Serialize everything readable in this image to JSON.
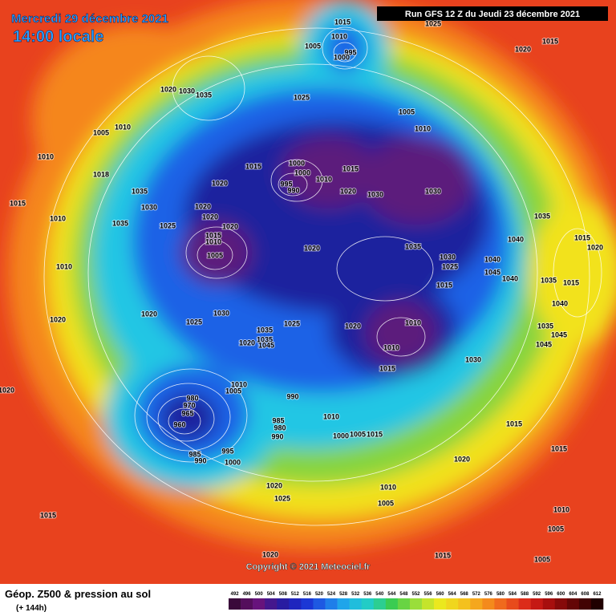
{
  "header": {
    "date": "Mercredi 29 décembre 2021",
    "time": "14:00 locale",
    "run": "Run GFS 12 Z du Jeudi 23 décembre 2021"
  },
  "footer": {
    "copyright": "Copyright © 2021 Meteociel.fr"
  },
  "legend": {
    "title": "Géop. Z500 & pression au sol",
    "lead": "(+ 144h)"
  },
  "colorbar": {
    "ticks": [
      492,
      496,
      500,
      504,
      508,
      512,
      516,
      520,
      524,
      528,
      532,
      536,
      540,
      544,
      548,
      552,
      556,
      560,
      564,
      568,
      572,
      576,
      580,
      584,
      588,
      592,
      596,
      600,
      604,
      608,
      612
    ]
  },
  "isobar_labels": [
    "1015",
    "1010",
    "1005",
    "995",
    "1000",
    "1025",
    "1015",
    "1020",
    "1020",
    "1030",
    "1035",
    "1025",
    "1005",
    "1010",
    "1005",
    "1010",
    "1010",
    "1015",
    "1000",
    "1000",
    "1015",
    "1010",
    "995",
    "990",
    "1020",
    "1030",
    "1030",
    "1018",
    "1020",
    "1035",
    "1030",
    "1020",
    "1020",
    "1025",
    "1020",
    "1035",
    "1015",
    "1010",
    "1015",
    "1010",
    "1020",
    "1035",
    "1035",
    "1040",
    "1015",
    "1020",
    "1005",
    "1030",
    "1025",
    "1040",
    "1045",
    "1040",
    "1015",
    "1035",
    "1015",
    "1010",
    "1020",
    "1030",
    "1025",
    "1025",
    "1020",
    "1010",
    "1040",
    "1035",
    "1045",
    "1045",
    "1035",
    "1035",
    "1020",
    "1045",
    "1010",
    "1015",
    "1030",
    "1020",
    "1020",
    "1010",
    "1005",
    "990",
    "980",
    "970",
    "965",
    "960",
    "985",
    "980",
    "990",
    "1010",
    "1015",
    "1000",
    "1005",
    "1015",
    "995",
    "985",
    "990",
    "1000",
    "1020",
    "1015",
    "1020",
    "1025",
    "1010",
    "1005",
    "1015",
    "1010",
    "1005",
    "1020",
    "1015",
    "1005"
  ]
}
